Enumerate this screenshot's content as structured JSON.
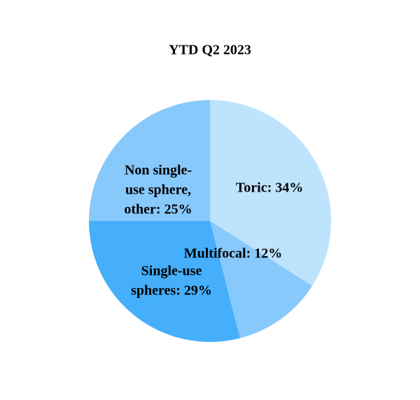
{
  "chart_data": {
    "type": "pie",
    "title": "YTD Q2 2023",
    "values": [
      34,
      12,
      29,
      25
    ],
    "value_labels": [
      [
        "Toric: 34%"
      ],
      [
        "Multifocal: 12%"
      ],
      [
        "Single-use",
        "spheres: 29%"
      ],
      [
        "Non single-",
        "use sphere,",
        "other: 25%"
      ]
    ],
    "colors": [
      "#bee3fd",
      "#88c9fc",
      "#45affc",
      "#88c9fc"
    ]
  }
}
